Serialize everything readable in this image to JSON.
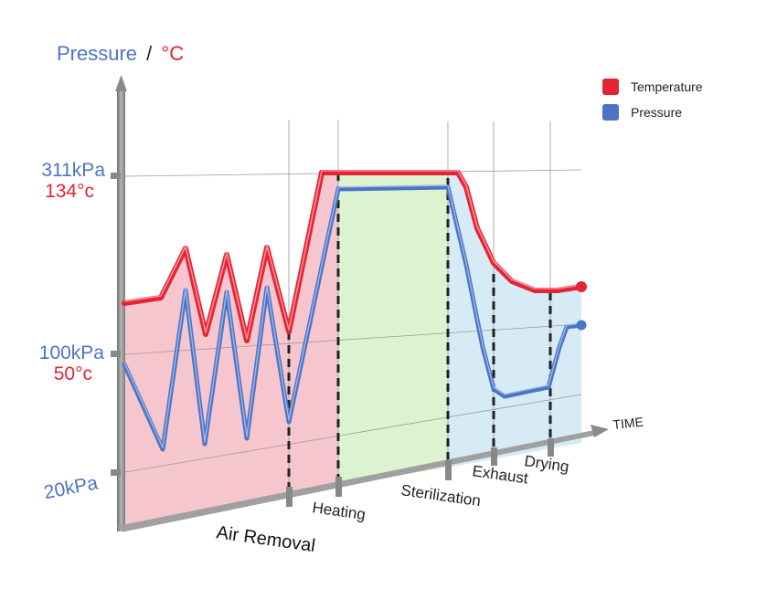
{
  "colors": {
    "temperature": "#e32434",
    "pressure": "#4d74c4",
    "pink_fill": "#f6c6cf",
    "green_fill": "#d8f0c8",
    "blue_fill": "#d6ebf5",
    "axis": "#8f8f8f"
  },
  "chart_data": {
    "type": "line",
    "ylabel_left": "Pressure",
    "ylabel_sep": "/",
    "ylabel_right": "°C",
    "xlabel": "TIME",
    "y_ticks": [
      {
        "pressure": "311kPa",
        "temperature": "134°c"
      },
      {
        "pressure": "100kPa",
        "temperature": "50°c"
      },
      {
        "pressure": "20kPa",
        "temperature": ""
      }
    ],
    "phases": [
      "Air Removal",
      "Heating",
      "Sterilization",
      "Exhaust",
      "Drying"
    ],
    "legend": [
      {
        "name": "Temperature",
        "color": "#e32434"
      },
      {
        "name": "Pressure",
        "color": "#4d74c4"
      }
    ],
    "series": [
      {
        "name": "Temperature",
        "trend": "oscillates during air removal, rises to 134°c, holds through sterilization, decays during exhaust, levels off during drying"
      },
      {
        "name": "Pressure",
        "trend": "pulses repeatedly during air removal, rises to 311kPa, holds through sterilization, drops during exhaust, recovers during drying"
      }
    ]
  }
}
